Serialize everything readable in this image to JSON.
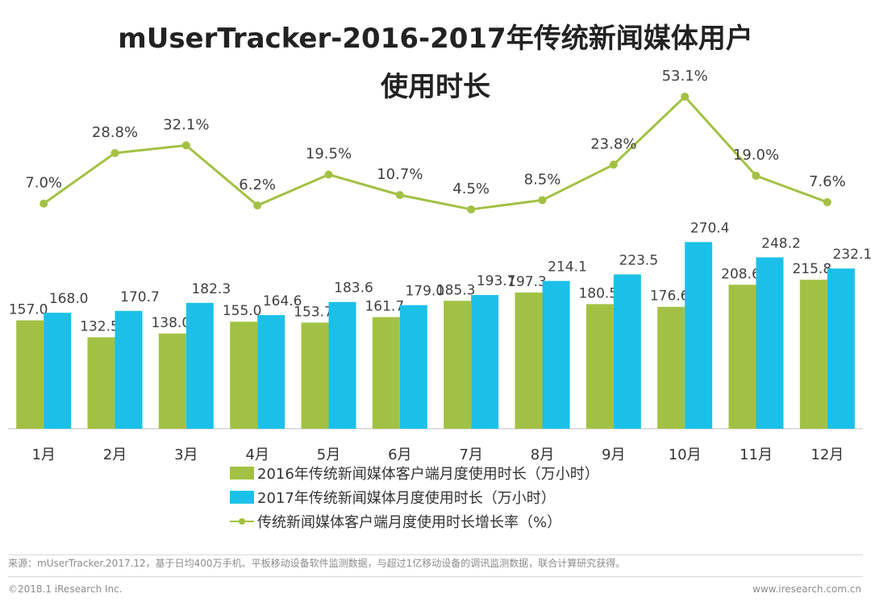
{
  "title": {
    "line1": "mUserTracker-2016-2017年传统新闻媒体用户",
    "line2": "使用时长"
  },
  "colors": {
    "bar2016": "#a2c144",
    "bar2017": "#1bc0e8",
    "rateLine": "#a2c144",
    "axis": "#bfbfbf",
    "label": "#404040"
  },
  "chart_data": {
    "type": "bar+line",
    "categories": [
      "1月",
      "2月",
      "3月",
      "4月",
      "5月",
      "6月",
      "7月",
      "8月",
      "9月",
      "10月",
      "11月",
      "12月"
    ],
    "series": [
      {
        "name": "2016年传统新闻媒体客户端月度使用时长（万小时）",
        "type": "bar",
        "values": [
          157.0,
          132.5,
          138.0,
          155.0,
          153.7,
          161.7,
          185.3,
          197.3,
          180.5,
          176.6,
          208.6,
          215.8
        ],
        "labels": [
          "157.0",
          "132.5",
          "138.0",
          "155.0",
          "153.7",
          "161.7",
          "185.3",
          "197.3",
          "180.5",
          "176.6",
          "208.6",
          "215.8"
        ]
      },
      {
        "name": "2017年传统新闻媒体月度使用时长（万小时）",
        "type": "bar",
        "values": [
          168.0,
          170.7,
          182.3,
          164.6,
          183.6,
          179.0,
          193.7,
          214.1,
          223.5,
          270.4,
          248.2,
          232.1
        ],
        "labels": [
          "168.0",
          "170.7",
          "182.3",
          "164.6",
          "183.6",
          "179.0",
          "193.7",
          "214.1",
          "223.5",
          "270.4",
          "248.2",
          "232.1"
        ]
      },
      {
        "name": "传统新闻媒体客户端月度使用时长增长率（%）",
        "type": "line",
        "values": [
          7.0,
          28.8,
          32.1,
          6.2,
          19.5,
          10.7,
          4.5,
          8.5,
          23.8,
          53.1,
          19.0,
          7.6
        ],
        "labels": [
          "7.0%",
          "28.8%",
          "32.1%",
          "6.2%",
          "19.5%",
          "10.7%",
          "4.5%",
          "8.5%",
          "23.8%",
          "53.1%",
          "19.0%",
          "7.6%"
        ]
      }
    ],
    "bar_ylim": [
      0,
      300
    ],
    "line_ylim": [
      -90,
      60
    ],
    "legend_position": "bottom-center"
  },
  "footer": {
    "source": "来源：mUserTracker.2017.12，基于日均400万手机、平板移动设备软件监测数据，与超过1亿移动设备的调讯监测数据，联合计算研究获得。",
    "copyright": "©2018.1 iResearch Inc.",
    "site": "www.iresearch.com.cn"
  }
}
